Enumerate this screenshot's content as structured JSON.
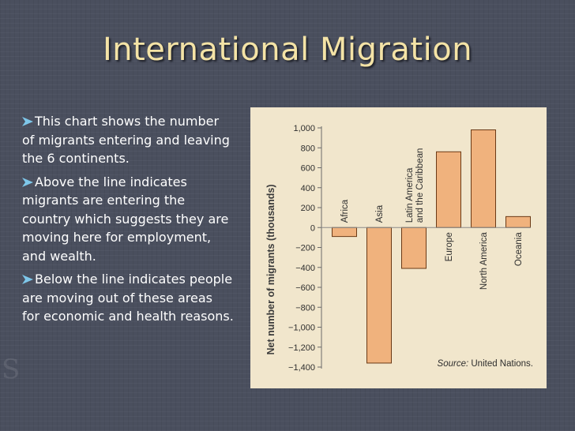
{
  "slide": {
    "title": "International Migration",
    "bullets": [
      "This chart shows the number of migrants entering and leaving the 6 continents.",
      "Above the line indicates migrants are entering the country which suggests they are moving here for employment, and wealth.",
      "Below the line indicates people are moving out of these areas for economic and health reasons."
    ],
    "bullet_icon": "arrow-bullet-icon"
  },
  "chart_data": {
    "type": "bar",
    "categories": [
      "Africa",
      "Asia",
      "Latin America\nand the Caribbean",
      "Europe",
      "North America",
      "Oceania"
    ],
    "values": [
      -90,
      -1360,
      -410,
      760,
      980,
      110
    ],
    "ylabel": "Net number of migrants (thousands)",
    "ylim": [
      -1400,
      1000
    ],
    "yticks": [
      1000,
      800,
      600,
      400,
      200,
      0,
      -200,
      -400,
      -600,
      -800,
      -1000,
      -1200,
      -1400
    ],
    "ytick_labels": [
      "1,000",
      "800",
      "600",
      "400",
      "200",
      "0",
      "−200",
      "−400",
      "−600",
      "−800",
      "−1,000",
      "−1,200",
      "−1,400"
    ],
    "source_label": "Source:",
    "source_text": "United Nations.",
    "colors": {
      "bar": "#f0b27d",
      "bar_stroke": "#6b3a16",
      "background": "#f1e6cc",
      "axis": "#6a6a6a"
    },
    "grid": false
  }
}
